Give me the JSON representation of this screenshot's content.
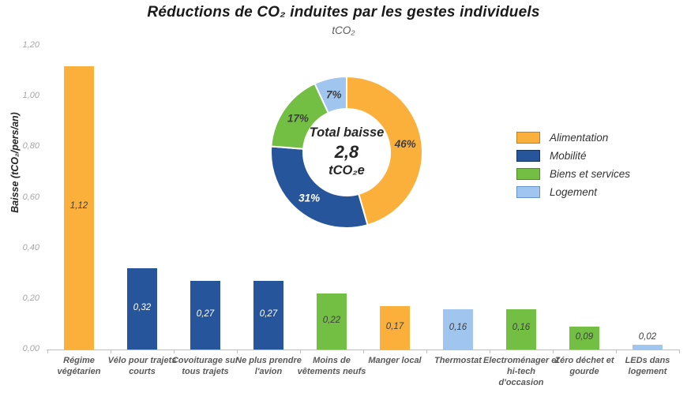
{
  "title": {
    "text": "Réductions de CO₂ induites par les gestes individuels",
    "subtitle": "tCO₂"
  },
  "colors": {
    "axis_line": "#bfbfbf",
    "tick_label": "#a6a6a6",
    "category_label": "#595959",
    "value_label_dark": "#3f3f3f",
    "value_label_light": "#ffffff",
    "title": "#1a1a1a"
  },
  "group_colors": {
    "Alimentation": "#FBB03B",
    "Mobilité": "#27559B",
    "Biens et services": "#73BF44",
    "Logement": "#A0C5EE"
  },
  "legend": {
    "items": [
      {
        "label": "Alimentation",
        "color": "#FBB03B",
        "border": "#B9821F"
      },
      {
        "label": "Mobilité",
        "color": "#27559B",
        "border": "#16355E"
      },
      {
        "label": "Biens et services",
        "color": "#73BF44",
        "border": "#4C8A2A"
      },
      {
        "label": "Logement",
        "color": "#A0C5EE",
        "border": "#6693C8"
      }
    ]
  },
  "chart_data": [
    {
      "type": "bar",
      "title": "Réductions de CO₂ induites par les gestes individuels",
      "subtitle": "tCO₂",
      "ylabel": "Baisse (tCO₂/pers/an)",
      "xlabel": "",
      "ylim": [
        0,
        1.2
      ],
      "yticks": [
        0,
        0.2,
        0.4,
        0.6,
        0.8,
        1.0,
        1.2
      ],
      "ytick_labels": [
        "0,00",
        "0,20",
        "0,40",
        "0,60",
        "0,80",
        "1,00",
        "1,20"
      ],
      "grid": false,
      "categories": [
        "Régime végétarien",
        "Vélo pour trajets courts",
        "Covoiturage sur tous trajets",
        "Ne plus prendre l'avion",
        "Moins de vêtements neufs",
        "Manger local",
        "Thermostat",
        "Electroménager et hi-tech d'occasion",
        "Zéro déchet et gourde",
        "LEDs dans logement"
      ],
      "values": [
        1.12,
        0.32,
        0.27,
        0.27,
        0.22,
        0.17,
        0.16,
        0.16,
        0.09,
        0.02
      ],
      "values_display": [
        "1,12",
        "0,32",
        "0,27",
        "0,27",
        "0,22",
        "0,17",
        "0,16",
        "0,16",
        "0,09",
        "0,02"
      ],
      "groups": [
        "Alimentation",
        "Mobilité",
        "Mobilité",
        "Mobilité",
        "Biens et services",
        "Alimentation",
        "Logement",
        "Biens et services",
        "Biens et services",
        "Logement"
      ]
    },
    {
      "type": "pie",
      "subtype": "donut",
      "labels": [
        "Alimentation",
        "Mobilité",
        "Biens et services",
        "Logement"
      ],
      "values": [
        46,
        31,
        17,
        7
      ],
      "unit": "%",
      "labels_display": [
        "46%",
        "31%",
        "17%",
        "7%"
      ],
      "label_text_colors": [
        "#3f3f3f",
        "#ffffff",
        "#3f3f3f",
        "#3f3f3f"
      ],
      "center_text": [
        "Total baisse",
        "2,8",
        "tCO₂e"
      ],
      "legend_position": "right"
    }
  ]
}
